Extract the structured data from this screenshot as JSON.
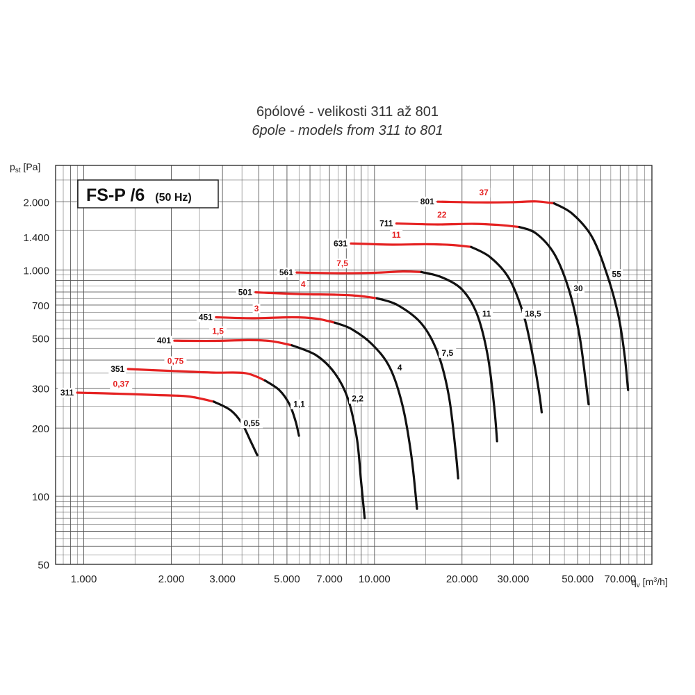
{
  "chart_data": {
    "type": "line",
    "title": "6pólové - velikosti 311 až 801",
    "subtitle": "6pole - models from 311 to 801",
    "badge": {
      "main": "FS-P /6",
      "sub": "(50 Hz)"
    },
    "ylabel": {
      "base": "p",
      "sub": "st",
      "unit": " [Pa]"
    },
    "xlabel": {
      "base": "q",
      "sub": "v",
      "unit_pre": " [m",
      "unit_sup": "3",
      "unit_post": "/h]"
    },
    "x_scale": "log",
    "y_scale": "log",
    "xlim": [
      800,
      90000
    ],
    "ylim": [
      50,
      2900
    ],
    "grid": true,
    "x_ticks": [
      {
        "value": 1000,
        "label": "1.000"
      },
      {
        "value": 2000,
        "label": "2.000"
      },
      {
        "value": 3000,
        "label": "3.000"
      },
      {
        "value": 5000,
        "label": "5.000"
      },
      {
        "value": 7000,
        "label": "7.000"
      },
      {
        "value": 10000,
        "label": "10.000"
      },
      {
        "value": 20000,
        "label": "20.000"
      },
      {
        "value": 30000,
        "label": "30.000"
      },
      {
        "value": 50000,
        "label": "50.000"
      },
      {
        "value": 70000,
        "label": "70.000"
      }
    ],
    "y_ticks": [
      {
        "value": 50,
        "label": "50"
      },
      {
        "value": 100,
        "label": "100"
      },
      {
        "value": 200,
        "label": "200"
      },
      {
        "value": 300,
        "label": "300"
      },
      {
        "value": 500,
        "label": "500"
      },
      {
        "value": 700,
        "label": "700"
      },
      {
        "value": 1000,
        "label": "1.000"
      },
      {
        "value": 1400,
        "label": "1.400"
      },
      {
        "value": 2000,
        "label": "2.000"
      }
    ],
    "series": [
      {
        "name": "311",
        "power_red": "0,37",
        "power_black": "0,55",
        "points": [
          [
            950,
            287
          ],
          [
            1300,
            284
          ],
          [
            1800,
            280
          ],
          [
            2300,
            276
          ],
          [
            2800,
            262
          ],
          [
            3200,
            240
          ],
          [
            3500,
            210
          ],
          [
            3750,
            175
          ],
          [
            3950,
            152
          ]
        ]
      },
      {
        "name": "351",
        "power_red": "0,75",
        "power_black": "1,1",
        "points": [
          [
            1420,
            365
          ],
          [
            2000,
            358
          ],
          [
            2800,
            352
          ],
          [
            3600,
            350
          ],
          [
            4200,
            325
          ],
          [
            4700,
            295
          ],
          [
            5100,
            255
          ],
          [
            5350,
            215
          ],
          [
            5500,
            185
          ]
        ]
      },
      {
        "name": "401",
        "power_red": "1,5",
        "power_black": "2,2",
        "points": [
          [
            2050,
            487
          ],
          [
            2800,
            486
          ],
          [
            3700,
            490
          ],
          [
            4400,
            485
          ],
          [
            5200,
            465
          ],
          [
            6300,
            420
          ],
          [
            7300,
            350
          ],
          [
            8100,
            270
          ],
          [
            8700,
            180
          ],
          [
            9000,
            115
          ],
          [
            9250,
            80
          ]
        ]
      },
      {
        "name": "451",
        "power_red": "3",
        "power_black": "4",
        "points": [
          [
            2850,
            618
          ],
          [
            3800,
            612
          ],
          [
            5200,
            618
          ],
          [
            6300,
            610
          ],
          [
            7300,
            585
          ],
          [
            8300,
            550
          ],
          [
            9800,
            470
          ],
          [
            11300,
            370
          ],
          [
            12500,
            250
          ],
          [
            13400,
            150
          ],
          [
            14000,
            88
          ]
        ]
      },
      {
        "name": "501",
        "power_red": "4",
        "power_black": "7,5",
        "points": [
          [
            3900,
            797
          ],
          [
            5500,
            783
          ],
          [
            7300,
            778
          ],
          [
            8700,
            770
          ],
          [
            10200,
            750
          ],
          [
            12000,
            700
          ],
          [
            14500,
            580
          ],
          [
            16500,
            430
          ],
          [
            18000,
            280
          ],
          [
            19000,
            160
          ],
          [
            19400,
            120
          ]
        ]
      },
      {
        "name": "561",
        "power_red": "7,5",
        "power_black": "11",
        "points": [
          [
            5400,
            975
          ],
          [
            7500,
            968
          ],
          [
            10000,
            972
          ],
          [
            12500,
            985
          ],
          [
            14500,
            980
          ],
          [
            17000,
            930
          ],
          [
            20000,
            820
          ],
          [
            22500,
            640
          ],
          [
            24500,
            420
          ],
          [
            25800,
            250
          ],
          [
            26400,
            175
          ]
        ]
      },
      {
        "name": "631",
        "power_red": "11",
        "power_black": "18,5",
        "points": [
          [
            8300,
            1310
          ],
          [
            11500,
            1295
          ],
          [
            15000,
            1300
          ],
          [
            18500,
            1290
          ],
          [
            21500,
            1265
          ],
          [
            25000,
            1140
          ],
          [
            29000,
            920
          ],
          [
            32500,
            640
          ],
          [
            35000,
            420
          ],
          [
            36800,
            290
          ],
          [
            37600,
            235
          ]
        ]
      },
      {
        "name": "711",
        "power_red": "22",
        "power_black": "30",
        "points": [
          [
            11900,
            1605
          ],
          [
            16500,
            1590
          ],
          [
            22000,
            1600
          ],
          [
            27000,
            1580
          ],
          [
            31500,
            1550
          ],
          [
            36000,
            1450
          ],
          [
            41500,
            1180
          ],
          [
            46500,
            830
          ],
          [
            50500,
            530
          ],
          [
            53000,
            340
          ],
          [
            54500,
            255
          ]
        ]
      },
      {
        "name": "801",
        "power_red": "37",
        "power_black": "55",
        "points": [
          [
            16500,
            2005
          ],
          [
            23000,
            1990
          ],
          [
            30000,
            1995
          ],
          [
            36000,
            2010
          ],
          [
            41500,
            1970
          ],
          [
            48000,
            1770
          ],
          [
            56000,
            1400
          ],
          [
            63000,
            960
          ],
          [
            69000,
            630
          ],
          [
            72500,
            420
          ],
          [
            74500,
            295
          ]
        ]
      }
    ],
    "colors": {
      "efficient": "#e52222",
      "outside": "#111111",
      "grid": "#555555",
      "label_black": "#111111"
    }
  }
}
